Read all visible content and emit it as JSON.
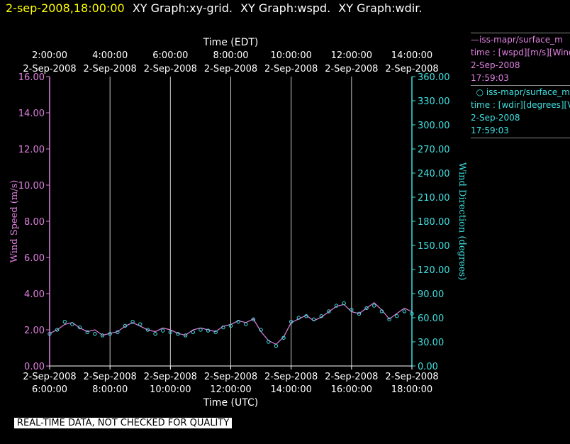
{
  "title_bar": {
    "timestamp": "2-sep-2008,18:00:00",
    "graphs": [
      "XY Graph:xy-grid.",
      "XY Graph:wspd.",
      "XY Graph:wdir."
    ]
  },
  "legend": {
    "entries": [
      {
        "line1": "iss-mapr/surface_m",
        "line2": "time : [wspd][m/s][Wind",
        "line3": "2-Sep-2008",
        "line4": "17:59:03",
        "color": "#e080e0",
        "marker": "line"
      },
      {
        "line1": "iss-mapr/surface_m",
        "line2": "time : [wdir][degrees][V",
        "line3": "2-Sep-2008",
        "line4": "17:59:03",
        "color": "#40e0e0",
        "marker": "circle"
      }
    ]
  },
  "disclaimer": "REAL-TIME DATA, NOT CHECKED FOR QUALITY",
  "chart_data": {
    "type": "line",
    "top_axis": {
      "title": "Time (EDT)",
      "ticks": [
        {
          "time": "2:00:00",
          "date": "2-Sep-2008"
        },
        {
          "time": "4:00:00",
          "date": "2-Sep-2008"
        },
        {
          "time": "6:00:00",
          "date": "2-Sep-2008"
        },
        {
          "time": "8:00:00",
          "date": "2-Sep-2008"
        },
        {
          "time": "10:00:00",
          "date": "2-Sep-2008"
        },
        {
          "time": "12:00:00",
          "date": "2-Sep-2008"
        },
        {
          "time": "14:00:00",
          "date": "2-Sep-2008"
        }
      ]
    },
    "bottom_axis": {
      "title": "Time (UTC)",
      "ticks": [
        {
          "time": "6:00:00",
          "date": "2-Sep-2008"
        },
        {
          "time": "8:00:00",
          "date": "2-Sep-2008"
        },
        {
          "time": "10:00:00",
          "date": "2-Sep-2008"
        },
        {
          "time": "12:00:00",
          "date": "2-Sep-2008"
        },
        {
          "time": "14:00:00",
          "date": "2-Sep-2008"
        },
        {
          "time": "16:00:00",
          "date": "2-Sep-2008"
        },
        {
          "time": "18:00:00",
          "date": "2-Sep-2008"
        }
      ]
    },
    "x_range_hours_utc": [
      6,
      18
    ],
    "vertical_grid": true,
    "left_axis": {
      "label": "Wind Speed (m/s)",
      "ylim": [
        0,
        16
      ],
      "tick_labels": [
        "0.00",
        "2.00",
        "4.00",
        "6.00",
        "8.00",
        "10.00",
        "12.00",
        "14.00",
        "16.00"
      ],
      "color": "#e080e0"
    },
    "right_axis": {
      "label": "Wind Direction (degrees)",
      "ylim": [
        0,
        360
      ],
      "tick_labels": [
        "0.00",
        "30.00",
        "60.00",
        "90.00",
        "120.00",
        "150.00",
        "180.00",
        "210.00",
        "240.00",
        "270.00",
        "300.00",
        "330.00",
        "360.00"
      ],
      "color": "#40e0e0"
    },
    "series": [
      {
        "name": "iss-mapr/surface_m wspd",
        "axis": "left",
        "style": "line",
        "x_hours_utc": [
          6.0,
          6.25,
          6.5,
          6.75,
          7.0,
          7.25,
          7.5,
          7.75,
          8.0,
          8.25,
          8.5,
          8.75,
          9.0,
          9.25,
          9.5,
          9.75,
          10.0,
          10.25,
          10.5,
          10.75,
          11.0,
          11.25,
          11.5,
          11.75,
          12.0,
          12.25,
          12.5,
          12.75,
          13.0,
          13.25,
          13.5,
          13.75,
          14.0,
          14.25,
          14.5,
          14.75,
          15.0,
          15.25,
          15.5,
          15.75,
          16.0,
          16.25,
          16.5,
          16.75,
          17.0,
          17.25,
          17.5,
          17.75,
          18.0
        ],
        "values": [
          1.8,
          2.0,
          2.3,
          2.4,
          2.1,
          1.9,
          2.0,
          1.7,
          1.8,
          1.9,
          2.2,
          2.4,
          2.2,
          2.0,
          1.9,
          2.1,
          2.0,
          1.8,
          1.7,
          2.0,
          2.1,
          2.0,
          1.9,
          2.2,
          2.3,
          2.5,
          2.4,
          2.6,
          1.9,
          1.4,
          1.2,
          1.6,
          2.4,
          2.6,
          2.8,
          2.5,
          2.7,
          3.0,
          3.3,
          3.4,
          3.0,
          2.9,
          3.2,
          3.5,
          3.1,
          2.6,
          2.9,
          3.2,
          3.0
        ]
      },
      {
        "name": "iss-mapr/surface_m wdir",
        "axis": "right",
        "style": "circle",
        "x_hours_utc": [
          6.0,
          6.25,
          6.5,
          6.75,
          7.0,
          7.25,
          7.5,
          7.75,
          8.0,
          8.25,
          8.5,
          8.75,
          9.0,
          9.25,
          9.5,
          9.75,
          10.0,
          10.25,
          10.5,
          10.75,
          11.0,
          11.25,
          11.5,
          11.75,
          12.0,
          12.25,
          12.5,
          12.75,
          13.0,
          13.25,
          13.5,
          13.75,
          14.0,
          14.25,
          14.5,
          14.75,
          15.0,
          15.25,
          15.5,
          15.75,
          16.0,
          16.25,
          16.5,
          16.75,
          17.0,
          17.25,
          17.5,
          17.75,
          18.0
        ],
        "values": [
          40,
          45,
          55,
          52,
          48,
          42,
          40,
          38,
          40,
          42,
          50,
          55,
          52,
          45,
          40,
          44,
          42,
          40,
          38,
          42,
          45,
          44,
          42,
          48,
          50,
          55,
          52,
          58,
          45,
          30,
          25,
          35,
          55,
          60,
          62,
          58,
          62,
          68,
          75,
          78,
          70,
          65,
          72,
          75,
          68,
          58,
          62,
          68,
          65
        ]
      }
    ]
  }
}
